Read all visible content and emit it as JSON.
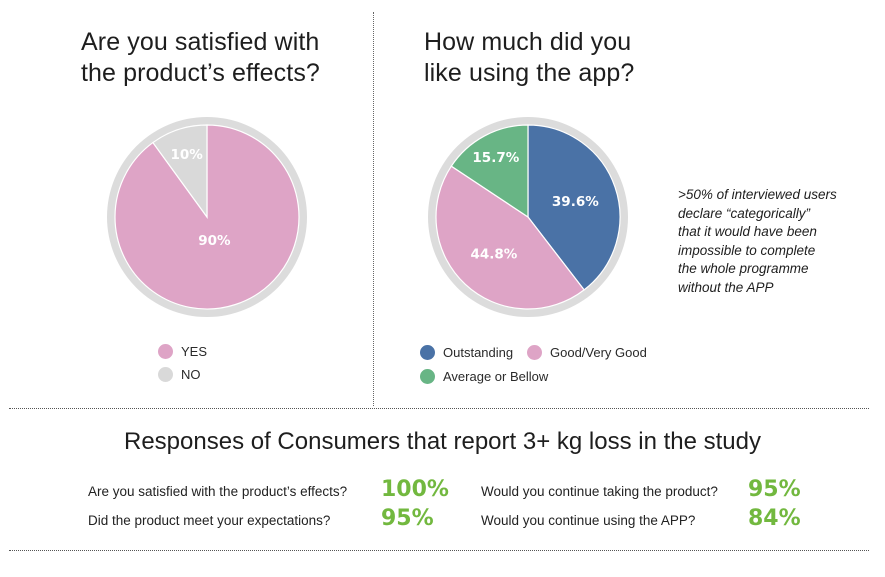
{
  "colors": {
    "pink": "#dea4c6",
    "gray_slice": "#d9d9d9",
    "ring": "#dcdcdc",
    "blue": "#4a72a6",
    "green": "#68b585",
    "pct_green": "#72b83f"
  },
  "chart_data": [
    {
      "type": "pie",
      "title": "Are you satisfied with the product’s effects?",
      "categories": [
        "YES",
        "NO"
      ],
      "values": [
        90,
        10
      ],
      "labels": [
        "90%",
        "10%"
      ],
      "colors": [
        "#dea4c6",
        "#d9d9d9"
      ],
      "legend": "bottom"
    },
    {
      "type": "pie",
      "title": "How much did you like using the app?",
      "categories": [
        "Outstanding",
        "Good/Very Good",
        "Average or Bellow"
      ],
      "values": [
        39.6,
        44.8,
        15.7
      ],
      "labels": [
        "39.6%",
        "44.8%",
        "15.7%"
      ],
      "colors": [
        "#4a72a6",
        "#dea4c6",
        "#68b585"
      ],
      "legend": "bottom"
    }
  ],
  "charts": {
    "left": {
      "title_line1": "Are you satisfied with",
      "title_line2": "the product’s effects?",
      "legend": [
        "YES",
        "NO"
      ]
    },
    "right": {
      "title_line1": "How much did you",
      "title_line2": "like using the app?",
      "legend": [
        "Outstanding",
        "Good/Very Good",
        "Average or Bellow"
      ]
    }
  },
  "note": {
    "lines": [
      ">50% of interviewed users",
      "declare “categorically”",
      "that it would have been",
      "impossible to complete",
      "the whole programme",
      "without the APP"
    ]
  },
  "responses": {
    "title": "Responses of Consumers that report 3+ kg loss in the study",
    "items": [
      {
        "question": "Are you satisfied with the product’s effects?",
        "value": "100%"
      },
      {
        "question": "Did the product meet your expectations?",
        "value": "95%"
      },
      {
        "question": "Would you continue taking the product?",
        "value": "95%"
      },
      {
        "question": "Would you continue using the APP?",
        "value": "84%"
      }
    ]
  }
}
